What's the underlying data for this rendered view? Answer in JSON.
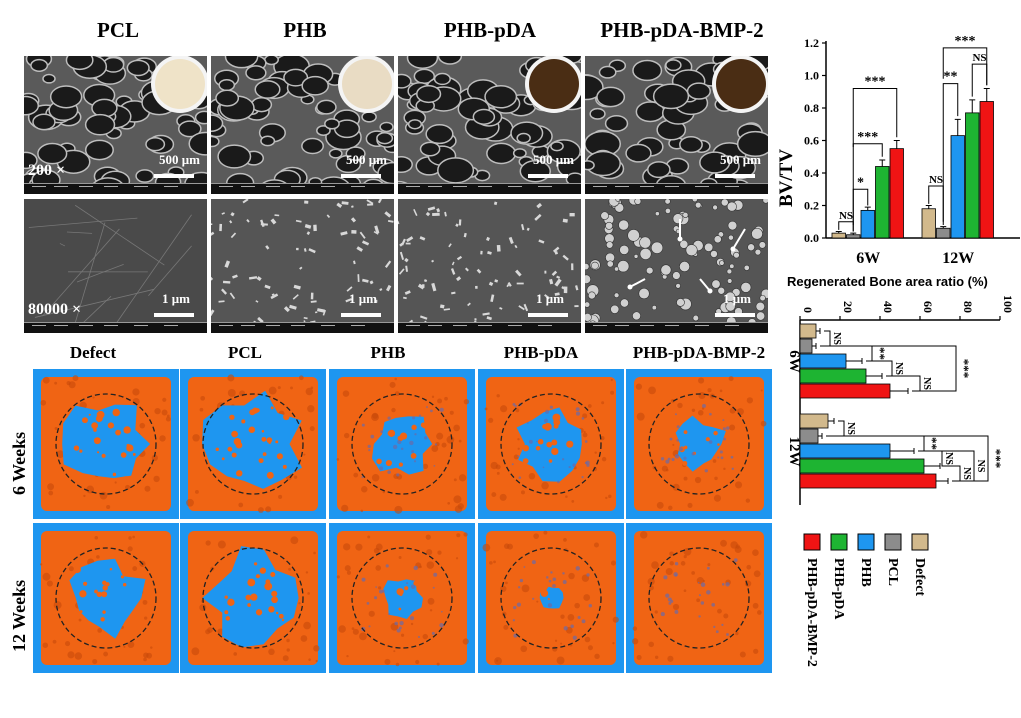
{
  "sem": {
    "columns": [
      "PCL",
      "PHB",
      "PHB-pDA",
      "PHB-pDA-BMP-2"
    ],
    "row1_mag": "200 ×",
    "row2_mag": "80000 ×",
    "scale_low": "500 μm",
    "scale_high": "1 μm"
  },
  "ct": {
    "columns": [
      "Defect",
      "PCL",
      "PHB",
      "PHB-pDA",
      "PHB-pDA-BMP-2"
    ],
    "rows": [
      "6 Weeks",
      "12 Weeks"
    ]
  },
  "colors": {
    "defect": "#d2b98c",
    "pcl": "#8c8c8c",
    "phb": "#1e96f0",
    "phb_pda": "#1eb432",
    "phb_pda_bmp2": "#f01414",
    "ct_background": "#1e96f0",
    "bone": "#f06414"
  },
  "chart_data": [
    {
      "type": "bar",
      "ylabel": "BV/TV",
      "ylim": [
        0,
        1.2
      ],
      "yticks": [
        "0.0",
        "0.2",
        "0.4",
        "0.6",
        "0.8",
        "1.0",
        "1.2"
      ],
      "groups": [
        "6W",
        "12W"
      ],
      "series": [
        {
          "name": "Defect",
          "values": [
            0.03,
            0.18
          ],
          "errors": [
            0.01,
            0.02
          ]
        },
        {
          "name": "PCL",
          "values": [
            0.02,
            0.06
          ],
          "errors": [
            0.01,
            0.01
          ]
        },
        {
          "name": "PHB",
          "values": [
            0.17,
            0.63
          ],
          "errors": [
            0.02,
            0.1
          ]
        },
        {
          "name": "PHB-pDA",
          "values": [
            0.44,
            0.77
          ],
          "errors": [
            0.04,
            0.08
          ]
        },
        {
          "name": "PHB-pDA-BMP-2",
          "values": [
            0.55,
            0.84
          ],
          "errors": [
            0.05,
            0.08
          ]
        }
      ],
      "annotations": [
        "NS",
        "*",
        "***",
        "***",
        "NS",
        "**",
        "***",
        "NS"
      ]
    },
    {
      "type": "bar",
      "orientation": "horizontal",
      "title": "Regenerated Bone area ratio (%)",
      "xlim": [
        0,
        100
      ],
      "xticks": [
        "0",
        "20",
        "40",
        "60",
        "80",
        "100"
      ],
      "groups": [
        "6W",
        "12W"
      ],
      "series": [
        {
          "name": "Defect",
          "values": [
            8,
            14
          ],
          "errors": [
            2,
            3
          ]
        },
        {
          "name": "PCL",
          "values": [
            6,
            9
          ],
          "errors": [
            2,
            2
          ]
        },
        {
          "name": "PHB",
          "values": [
            23,
            45
          ],
          "errors": [
            8,
            12
          ]
        },
        {
          "name": "PHB-pDA",
          "values": [
            33,
            62
          ],
          "errors": [
            8,
            8
          ]
        },
        {
          "name": "PHB-pDA-BMP-2",
          "values": [
            45,
            68
          ],
          "errors": [
            9,
            6
          ]
        }
      ],
      "annotations": [
        "NS",
        "NS",
        "NS",
        "NS",
        "**",
        "***",
        "NS",
        "NS",
        "**",
        "NS",
        "***"
      ]
    }
  ],
  "legend": [
    "PHB-pDA-BMP-2",
    "PHB-pDA",
    "PHB",
    "PCL",
    "Defect"
  ]
}
